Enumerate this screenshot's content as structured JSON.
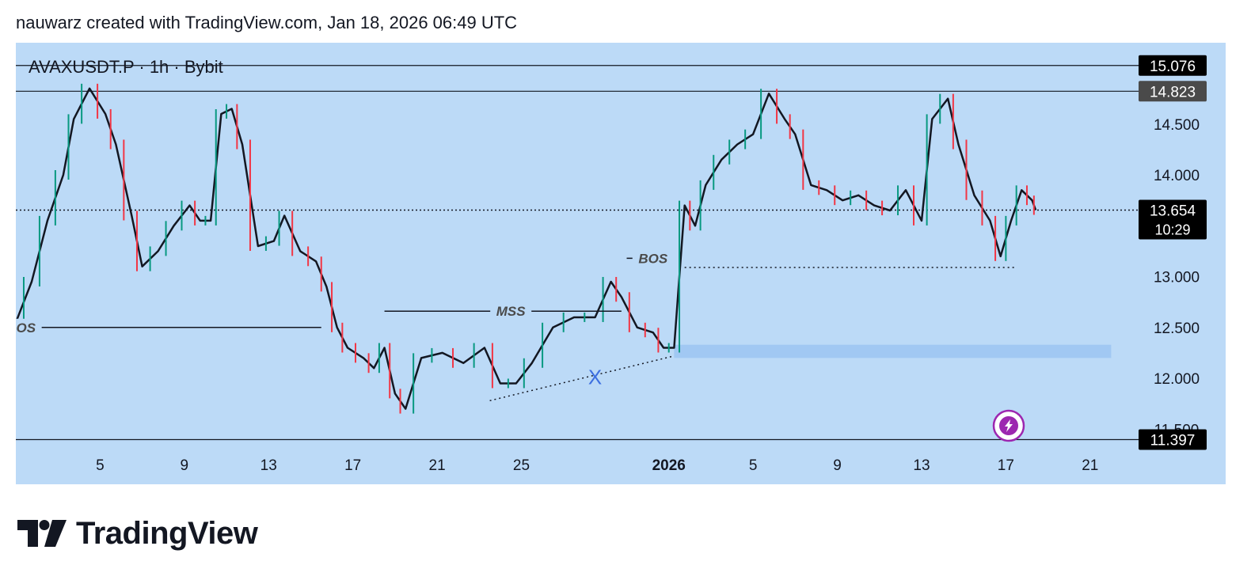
{
  "header": {
    "caption": "nauwarz created with TradingView.com, Jan 18, 2026 06:49 UTC"
  },
  "footer": {
    "brand_name": "TradingView",
    "logo_icon": "tradingview-logo-icon"
  },
  "colors": {
    "background": "#bcdaf7",
    "up_candle": "#089981",
    "down_candle": "#f23645",
    "level_label_bg": "#000000",
    "zone_fill": "#9cc4f2",
    "accent_purple": "#9c27b0",
    "x_mark": "#3d6fe0"
  },
  "chart_data": {
    "type": "line",
    "title": "AVAXUSDT.P · 1h · Bybit",
    "symbol": "AVAXUSDT.P",
    "interval": "1h",
    "exchange": "Bybit",
    "xlabel": "",
    "ylabel": "",
    "x_range": [
      "2025-12-01",
      "2026-01-23"
    ],
    "ylim": [
      11.3,
      15.3
    ],
    "y_ticks": [
      {
        "value": 14.5,
        "label": "14.500"
      },
      {
        "value": 14.0,
        "label": "14.000"
      },
      {
        "value": 13.0,
        "label": "13.000"
      },
      {
        "value": 12.5,
        "label": "12.500"
      },
      {
        "value": 12.0,
        "label": "12.000"
      },
      {
        "value": 11.5,
        "label": "11.500"
      }
    ],
    "x_ticks": [
      {
        "date": "2025-12-05",
        "label": "5",
        "bold": false
      },
      {
        "date": "2025-12-09",
        "label": "9",
        "bold": false
      },
      {
        "date": "2025-12-13",
        "label": "13",
        "bold": false
      },
      {
        "date": "2025-12-17",
        "label": "17",
        "bold": false
      },
      {
        "date": "2025-12-21",
        "label": "21",
        "bold": false
      },
      {
        "date": "2025-12-25",
        "label": "25",
        "bold": false
      },
      {
        "date": "2026-01-01",
        "label": "2026",
        "bold": true
      },
      {
        "date": "2026-01-05",
        "label": "5",
        "bold": false
      },
      {
        "date": "2026-01-09",
        "label": "9",
        "bold": false
      },
      {
        "date": "2026-01-13",
        "label": "13",
        "bold": false
      },
      {
        "date": "2026-01-17",
        "label": "17",
        "bold": false
      },
      {
        "date": "2026-01-21",
        "label": "21",
        "bold": false
      }
    ],
    "grid": false,
    "series": [
      {
        "x": [
          "2025-12-01 00:00",
          "2025-12-01 18:00",
          "2025-12-02 12:00",
          "2025-12-03 06:00",
          "2025-12-03 18:00",
          "2025-12-04 12:00",
          "2025-12-05 06:00",
          "2025-12-05 18:00",
          "2025-12-06 12:00",
          "2025-12-07 00:00",
          "2025-12-07 18:00",
          "2025-12-08 12:00",
          "2025-12-09 06:00",
          "2025-12-09 18:00",
          "2025-12-10 06:00",
          "2025-12-10 18:00",
          "2025-12-11 06:00",
          "2025-12-11 18:00",
          "2025-12-12 12:00",
          "2025-12-13 06:00",
          "2025-12-13 18:00",
          "2025-12-14 12:00",
          "2025-12-15 06:00",
          "2025-12-15 18:00",
          "2025-12-16 06:00",
          "2025-12-16 18:00",
          "2025-12-17 12:00",
          "2025-12-18 00:00",
          "2025-12-18 12:00",
          "2025-12-19 00:00",
          "2025-12-19 12:00",
          "2025-12-20 06:00",
          "2025-12-21 06:00",
          "2025-12-22 06:00",
          "2025-12-23 06:00",
          "2025-12-24 00:00",
          "2025-12-24 18:00",
          "2025-12-25 12:00",
          "2025-12-26 12:00",
          "2025-12-27 12:00",
          "2025-12-28 12:00",
          "2025-12-29 06:00",
          "2025-12-29 18:00",
          "2025-12-30 12:00",
          "2025-12-31 06:00",
          "2025-12-31 18:00",
          "2026-01-01 06:00",
          "2026-01-01 18:00",
          "2026-01-02 06:00",
          "2026-01-02 18:00",
          "2026-01-03 12:00",
          "2026-01-04 06:00",
          "2026-01-05 00:00",
          "2026-01-05 18:00",
          "2026-01-06 12:00",
          "2026-01-07 00:00",
          "2026-01-07 18:00",
          "2026-01-08 12:00",
          "2026-01-09 06:00",
          "2026-01-10 00:00",
          "2026-01-10 18:00",
          "2026-01-11 12:00",
          "2026-01-12 06:00",
          "2026-01-13 00:00",
          "2026-01-13 12:00",
          "2026-01-14 06:00",
          "2026-01-14 18:00",
          "2026-01-15 12:00",
          "2026-01-16 06:00",
          "2026-01-16 18:00",
          "2026-01-17 06:00",
          "2026-01-17 18:00",
          "2026-01-18 06:00",
          "2026-01-18 10:00"
        ],
        "values": [
          12.55,
          12.95,
          13.55,
          14.0,
          14.55,
          14.85,
          14.6,
          14.3,
          13.6,
          13.1,
          13.25,
          13.5,
          13.7,
          13.55,
          13.55,
          14.6,
          14.65,
          14.3,
          13.3,
          13.35,
          13.6,
          13.25,
          13.15,
          12.9,
          12.5,
          12.3,
          12.2,
          12.1,
          12.3,
          11.85,
          11.7,
          12.2,
          12.25,
          12.15,
          12.3,
          11.95,
          11.95,
          12.15,
          12.5,
          12.6,
          12.6,
          12.95,
          12.8,
          12.5,
          12.45,
          12.3,
          12.3,
          13.7,
          13.5,
          13.9,
          14.15,
          14.3,
          14.4,
          14.8,
          14.55,
          14.4,
          13.9,
          13.85,
          13.75,
          13.8,
          13.7,
          13.65,
          13.85,
          13.55,
          14.55,
          14.75,
          14.3,
          13.8,
          13.55,
          13.2,
          13.55,
          13.85,
          13.75,
          13.654
        ]
      }
    ],
    "price_levels": [
      {
        "value": 15.076,
        "label": "15.076",
        "style": "solid"
      },
      {
        "value": 14.823,
        "label": "14.823",
        "style": "solid"
      },
      {
        "value": 13.654,
        "label": "13.654",
        "countdown": "10:29",
        "style": "dotted"
      },
      {
        "value": 11.397,
        "label": "11.397",
        "style": "solid"
      }
    ],
    "annotations": [
      {
        "text": "BOS",
        "date": "2025-12-01 06:00",
        "value": 12.5,
        "line_from": "2025-12-01 00:00",
        "line_to": "2025-12-15 12:00"
      },
      {
        "text": "MSS",
        "date": "2025-12-24 12:00",
        "value": 12.66,
        "line_from": "2025-12-18 12:00",
        "line_to": "2025-12-29 18:00"
      },
      {
        "text": "BOS",
        "date": "2025-12-31 06:00",
        "value": 13.18,
        "line_from": "2025-12-30 00:00",
        "line_to": "2026-01-01 00:00"
      },
      {
        "text": "X",
        "date": "2025-12-28 12:00",
        "value": 12.02
      }
    ],
    "dotted_lines": [
      {
        "from": [
          "2025-12-23 12:00",
          11.78
        ],
        "to": [
          "2026-01-01 06:00",
          12.22
        ]
      },
      {
        "from": [
          "2026-01-01 18:00",
          13.09
        ],
        "to": [
          "2026-01-17 12:00",
          13.09
        ]
      }
    ],
    "zones": [
      {
        "from": "2026-01-01 06:00",
        "to": "2026-01-22 00:00",
        "low": 12.2,
        "high": 12.33
      }
    ],
    "legend": "none"
  }
}
